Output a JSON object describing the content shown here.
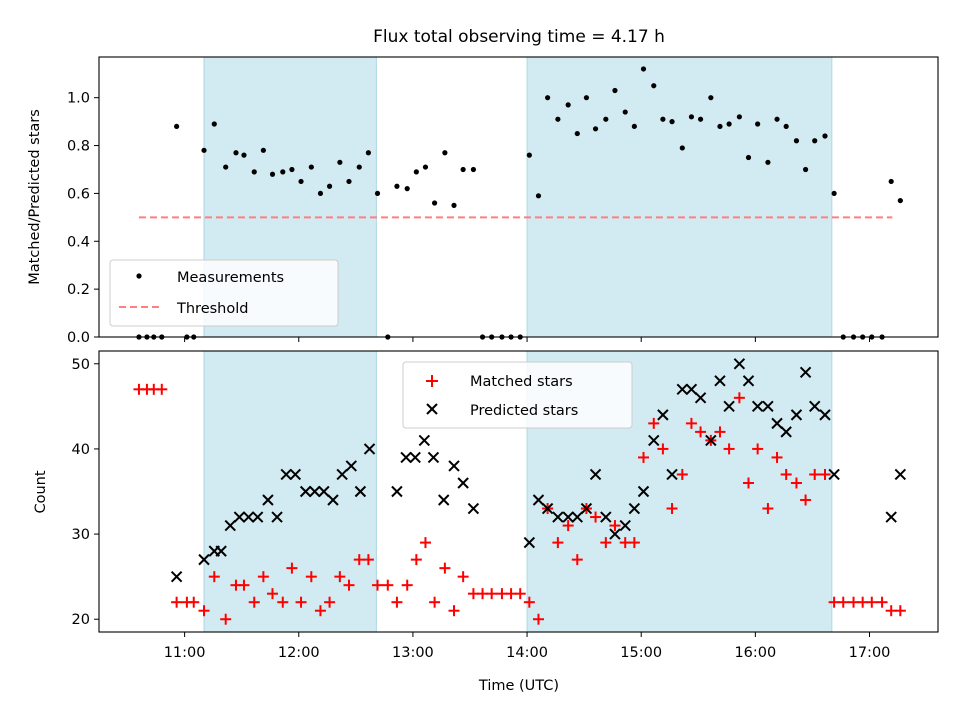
{
  "chart_data": [
    {
      "type": "scatter",
      "title": "Flux total observing time = 4.17 h",
      "xlabel": "",
      "ylabel": "Matched/Predicted stars",
      "ylim": [
        0,
        1.17
      ],
      "yticks": [
        0.0,
        0.2,
        0.4,
        0.6,
        0.8,
        1.0
      ],
      "ytick_labels": [
        "0.0",
        "0.2",
        "0.4",
        "0.6",
        "0.8",
        "1.0"
      ],
      "xlim": [
        10.25,
        17.6
      ],
      "xticks": [
        11,
        12,
        13,
        14,
        15,
        16,
        17
      ],
      "xtick_labels": [
        "",
        "",
        "",
        "",
        "",
        "",
        ""
      ],
      "shaded_intervals": [
        [
          11.17,
          12.68
        ],
        [
          14.0,
          16.67
        ]
      ],
      "shade_color": "#add8e6",
      "legend_position": "lower left",
      "series": [
        {
          "name": "Measurements",
          "kind": "scatter",
          "color": "#000000",
          "x": [
            10.6,
            10.67,
            10.73,
            10.8,
            10.93,
            11.02,
            11.08,
            11.17,
            11.26,
            11.36,
            11.45,
            11.52,
            11.61,
            11.69,
            11.77,
            11.86,
            11.94,
            12.02,
            12.11,
            12.19,
            12.27,
            12.36,
            12.44,
            12.53,
            12.61,
            12.69,
            12.78,
            12.86,
            12.95,
            13.03,
            13.11,
            13.19,
            13.28,
            13.36,
            13.44,
            13.53,
            13.61,
            13.69,
            13.78,
            13.86,
            13.94,
            14.02,
            14.1,
            14.18,
            14.27,
            14.36,
            14.44,
            14.52,
            14.6,
            14.69,
            14.77,
            14.86,
            14.94,
            15.02,
            15.11,
            15.19,
            15.27,
            15.36,
            15.44,
            15.52,
            15.61,
            15.69,
            15.77,
            15.86,
            15.94,
            16.02,
            16.11,
            16.19,
            16.27,
            16.36,
            16.44,
            16.52,
            16.61,
            16.69,
            16.77,
            16.86,
            16.94,
            17.02,
            17.11,
            17.19,
            17.27
          ],
          "y": [
            0.0,
            0.0,
            0.0,
            0.0,
            0.88,
            0.0,
            0.0,
            0.78,
            0.89,
            0.71,
            0.77,
            0.76,
            0.69,
            0.78,
            0.68,
            0.69,
            0.7,
            0.65,
            0.71,
            0.6,
            0.63,
            0.73,
            0.65,
            0.71,
            0.77,
            0.6,
            0.0,
            0.63,
            0.62,
            0.69,
            0.71,
            0.56,
            0.77,
            0.55,
            0.7,
            0.7,
            0.0,
            0.0,
            0.0,
            0.0,
            0.0,
            0.76,
            0.59,
            1.0,
            0.91,
            0.97,
            0.85,
            1.0,
            0.87,
            0.91,
            1.03,
            0.94,
            0.88,
            1.12,
            1.05,
            0.91,
            0.9,
            0.79,
            0.92,
            0.91,
            1.0,
            0.88,
            0.89,
            0.92,
            0.75,
            0.89,
            0.73,
            0.91,
            0.88,
            0.82,
            0.7,
            0.82,
            0.84,
            0.6,
            0.0,
            0.0,
            0.0,
            0.0,
            0.0,
            0.65,
            0.57
          ]
        },
        {
          "name": "Threshold",
          "kind": "line",
          "style": "dashed",
          "color": "#ff7f7f",
          "x": [
            10.6,
            17.2
          ],
          "y": [
            0.5,
            0.5
          ]
        }
      ]
    },
    {
      "type": "scatter",
      "title": "",
      "xlabel": "Time (UTC)",
      "ylabel": "Count",
      "ylim": [
        18.5,
        51.5
      ],
      "yticks": [
        20,
        30,
        40,
        50
      ],
      "ytick_labels": [
        "20",
        "30",
        "40",
        "50"
      ],
      "xlim": [
        10.25,
        17.6
      ],
      "xticks": [
        11,
        12,
        13,
        14,
        15,
        16,
        17
      ],
      "xtick_labels": [
        "11:00",
        "12:00",
        "13:00",
        "14:00",
        "15:00",
        "16:00",
        "17:00"
      ],
      "shaded_intervals": [
        [
          11.17,
          12.68
        ],
        [
          14.0,
          16.67
        ]
      ],
      "shade_color": "#add8e6",
      "legend_position": "upper center",
      "series": [
        {
          "name": "Matched stars",
          "marker": "+",
          "color": "#ff0000",
          "x": [
            10.6,
            10.67,
            10.73,
            10.8,
            10.93,
            11.02,
            11.08,
            11.17,
            11.26,
            11.36,
            11.45,
            11.52,
            11.61,
            11.69,
            11.77,
            11.86,
            11.94,
            12.02,
            12.11,
            12.19,
            12.27,
            12.36,
            12.44,
            12.53,
            12.61,
            12.69,
            12.78,
            12.86,
            12.95,
            13.03,
            13.11,
            13.19,
            13.28,
            13.36,
            13.44,
            13.53,
            13.61,
            13.69,
            13.78,
            13.86,
            13.94,
            14.02,
            14.1,
            14.18,
            14.27,
            14.36,
            14.44,
            14.52,
            14.6,
            14.69,
            14.77,
            14.86,
            14.94,
            15.02,
            15.11,
            15.19,
            15.27,
            15.36,
            15.44,
            15.52,
            15.61,
            15.69,
            15.77,
            15.86,
            15.94,
            16.02,
            16.11,
            16.19,
            16.27,
            16.36,
            16.44,
            16.52,
            16.61,
            16.69,
            16.77,
            16.86,
            16.94,
            17.02,
            17.11,
            17.19,
            17.27
          ],
          "y": [
            47,
            47,
            47,
            47,
            22,
            22,
            22,
            21,
            25,
            20,
            24,
            24,
            22,
            25,
            23,
            22,
            26,
            22,
            25,
            21,
            22,
            25,
            24,
            27,
            27,
            24,
            24,
            22,
            24,
            27,
            29,
            22,
            26,
            21,
            25,
            23,
            23,
            23,
            23,
            23,
            23,
            22,
            20,
            33,
            29,
            31,
            27,
            33,
            32,
            29,
            31,
            29,
            29,
            39,
            43,
            40,
            33,
            37,
            43,
            42,
            41,
            42,
            40,
            46,
            36,
            40,
            33,
            39,
            37,
            36,
            34,
            37,
            37,
            22,
            22,
            22,
            22,
            22,
            22,
            21,
            21
          ]
        },
        {
          "name": "Predicted stars",
          "marker": "x",
          "color": "#000000",
          "x": [
            10.93,
            11.17,
            11.26,
            11.32,
            11.4,
            11.48,
            11.56,
            11.64,
            11.73,
            11.81,
            11.89,
            11.97,
            12.06,
            12.14,
            12.22,
            12.3,
            12.38,
            12.46,
            12.54,
            12.62,
            12.69,
            12.86,
            12.94,
            13.02,
            13.1,
            13.18,
            13.27,
            13.36,
            13.44,
            13.53,
            14.02,
            14.1,
            14.18,
            14.27,
            14.36,
            14.44,
            14.52,
            14.6,
            14.69,
            14.77,
            14.86,
            14.94,
            15.02,
            15.11,
            15.19,
            15.27,
            15.36,
            15.44,
            15.52,
            15.61,
            15.69,
            15.77,
            15.86,
            15.94,
            16.02,
            16.11,
            16.19,
            16.27,
            16.36,
            16.44,
            16.52,
            16.61,
            16.69,
            17.19,
            17.27
          ],
          "y": [
            25,
            27,
            28,
            28,
            31,
            32,
            32,
            32,
            34,
            32,
            37,
            37,
            35,
            35,
            35,
            34,
            37,
            38,
            35,
            40,
            null,
            35,
            39,
            39,
            41,
            39,
            34,
            38,
            36,
            33,
            29,
            34,
            33,
            32,
            32,
            32,
            33,
            37,
            32,
            30,
            31,
            33,
            35,
            41,
            44,
            37,
            47,
            47,
            46,
            41,
            48,
            45,
            50,
            48,
            45,
            45,
            43,
            42,
            44,
            49,
            45,
            44,
            37,
            32,
            37
          ]
        }
      ]
    }
  ]
}
